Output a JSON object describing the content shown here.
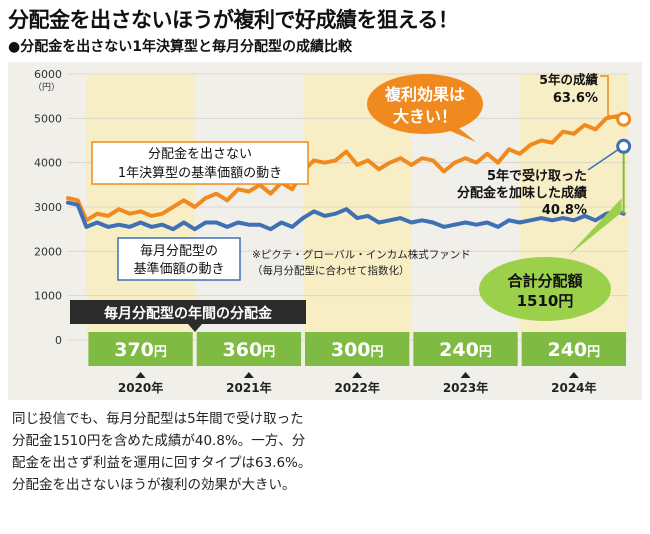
{
  "title": "分配金を出さないほうが複利で好成績を狙える！",
  "subtitle": "●分配金を出さない1年決算型と毎月分配型の成績比較",
  "chart_data": {
    "type": "line",
    "yunit": "（円）",
    "ylim": [
      0,
      6000
    ],
    "yticks": [
      "0",
      "1000",
      "2000",
      "3000",
      "4000",
      "5000",
      "6000"
    ],
    "years": [
      {
        "label": "2020年",
        "start": 2020,
        "end": 2021
      },
      {
        "label": "2021年",
        "start": 2021,
        "end": 2022
      },
      {
        "label": "2022年",
        "start": 2022,
        "end": 2023
      },
      {
        "label": "2023年",
        "start": 2023,
        "end": 2024
      },
      {
        "label": "2024年",
        "start": 2024,
        "end": 2025
      }
    ],
    "distribution_bar": {
      "label": "毎月分配型の年間の分配金",
      "values": [
        {
          "num": "370",
          "unit": "円"
        },
        {
          "num": "360",
          "unit": "円"
        },
        {
          "num": "300",
          "unit": "円"
        },
        {
          "num": "240",
          "unit": "円"
        },
        {
          "num": "240",
          "unit": "円"
        }
      ]
    },
    "series": [
      {
        "name": "分配金を出さない1年決算型の基準価額の動き",
        "label_lines": [
          "分配金を出さない",
          "1年決算型の基準価額の動き"
        ],
        "color": "#f08a1e",
        "points": [
          [
            2019.83,
            3200
          ],
          [
            2019.92,
            3150
          ],
          [
            2020.0,
            2700
          ],
          [
            2020.1,
            2850
          ],
          [
            2020.2,
            2800
          ],
          [
            2020.3,
            2950
          ],
          [
            2020.4,
            2850
          ],
          [
            2020.5,
            2900
          ],
          [
            2020.6,
            2800
          ],
          [
            2020.7,
            2850
          ],
          [
            2020.8,
            3000
          ],
          [
            2020.9,
            3150
          ],
          [
            2021.0,
            3000
          ],
          [
            2021.1,
            3200
          ],
          [
            2021.2,
            3300
          ],
          [
            2021.3,
            3150
          ],
          [
            2021.4,
            3400
          ],
          [
            2021.5,
            3350
          ],
          [
            2021.6,
            3500
          ],
          [
            2021.7,
            3300
          ],
          [
            2021.8,
            3550
          ],
          [
            2021.9,
            3400
          ],
          [
            2022.0,
            3800
          ],
          [
            2022.1,
            4050
          ],
          [
            2022.2,
            4000
          ],
          [
            2022.3,
            4050
          ],
          [
            2022.4,
            4250
          ],
          [
            2022.5,
            3950
          ],
          [
            2022.6,
            4050
          ],
          [
            2022.7,
            3850
          ],
          [
            2022.8,
            4000
          ],
          [
            2022.9,
            4100
          ],
          [
            2023.0,
            3950
          ],
          [
            2023.1,
            4100
          ],
          [
            2023.2,
            4050
          ],
          [
            2023.3,
            3800
          ],
          [
            2023.4,
            4000
          ],
          [
            2023.5,
            4100
          ],
          [
            2023.6,
            4000
          ],
          [
            2023.7,
            4200
          ],
          [
            2023.8,
            4000
          ],
          [
            2023.9,
            4300
          ],
          [
            2024.0,
            4200
          ],
          [
            2024.1,
            4400
          ],
          [
            2024.2,
            4500
          ],
          [
            2024.3,
            4450
          ],
          [
            2024.4,
            4700
          ],
          [
            2024.5,
            4650
          ],
          [
            2024.6,
            4850
          ],
          [
            2024.7,
            4750
          ],
          [
            2024.8,
            5000
          ],
          [
            2024.9,
            5050
          ],
          [
            2024.96,
            5000
          ]
        ]
      },
      {
        "name": "毎月分配型の基準価額の動き",
        "label_lines": [
          "毎月分配型の",
          "基準価額の動き"
        ],
        "color": "#3f6fb5",
        "points": [
          [
            2019.83,
            3100
          ],
          [
            2019.92,
            3050
          ],
          [
            2020.0,
            2550
          ],
          [
            2020.1,
            2650
          ],
          [
            2020.2,
            2550
          ],
          [
            2020.3,
            2600
          ],
          [
            2020.4,
            2550
          ],
          [
            2020.5,
            2650
          ],
          [
            2020.6,
            2550
          ],
          [
            2020.7,
            2600
          ],
          [
            2020.8,
            2500
          ],
          [
            2020.9,
            2650
          ],
          [
            2021.0,
            2500
          ],
          [
            2021.1,
            2650
          ],
          [
            2021.2,
            2650
          ],
          [
            2021.3,
            2550
          ],
          [
            2021.4,
            2650
          ],
          [
            2021.5,
            2600
          ],
          [
            2021.6,
            2600
          ],
          [
            2021.7,
            2500
          ],
          [
            2021.8,
            2650
          ],
          [
            2021.9,
            2550
          ],
          [
            2022.0,
            2750
          ],
          [
            2022.1,
            2900
          ],
          [
            2022.2,
            2800
          ],
          [
            2022.3,
            2850
          ],
          [
            2022.4,
            2950
          ],
          [
            2022.5,
            2750
          ],
          [
            2022.6,
            2800
          ],
          [
            2022.7,
            2650
          ],
          [
            2022.8,
            2700
          ],
          [
            2022.9,
            2750
          ],
          [
            2023.0,
            2650
          ],
          [
            2023.1,
            2700
          ],
          [
            2023.2,
            2650
          ],
          [
            2023.3,
            2550
          ],
          [
            2023.4,
            2600
          ],
          [
            2023.5,
            2650
          ],
          [
            2023.6,
            2600
          ],
          [
            2023.7,
            2650
          ],
          [
            2023.8,
            2550
          ],
          [
            2023.9,
            2700
          ],
          [
            2024.0,
            2650
          ],
          [
            2024.1,
            2700
          ],
          [
            2024.2,
            2750
          ],
          [
            2024.3,
            2700
          ],
          [
            2024.4,
            2750
          ],
          [
            2024.5,
            2700
          ],
          [
            2024.6,
            2800
          ],
          [
            2024.7,
            2700
          ],
          [
            2024.8,
            2850
          ],
          [
            2024.9,
            2900
          ],
          [
            2024.96,
            2850
          ]
        ]
      }
    ],
    "endpoints": [
      {
        "x": 2024.96,
        "y": 4980,
        "color": "#f08a1e"
      },
      {
        "x": 2024.96,
        "y": 4370,
        "color": "#3f6fb5"
      }
    ],
    "annotations": {
      "bubble": [
        "複利効果は",
        "大きい！"
      ],
      "five_year_result": [
        "5年の成績",
        "63.6%"
      ],
      "with_distribution": [
        "5年で受け取った",
        "分配金を加味した成績",
        "40.8%"
      ],
      "fund_note": [
        "※ピクテ・グローバル・インカム株式ファンド",
        "（毎月分配型に合わせて指数化）"
      ],
      "total_distribution": [
        "合計分配額",
        "1510円"
      ]
    }
  },
  "body_text": "同じ投信でも、毎月分配型は5年間で受け取った分配金1510円を含めた成績が40.8%。一方、分配金を出さず利益を運用に回すタイプは63.6%。分配金を出さないほうが複利の効果が大きい。"
}
